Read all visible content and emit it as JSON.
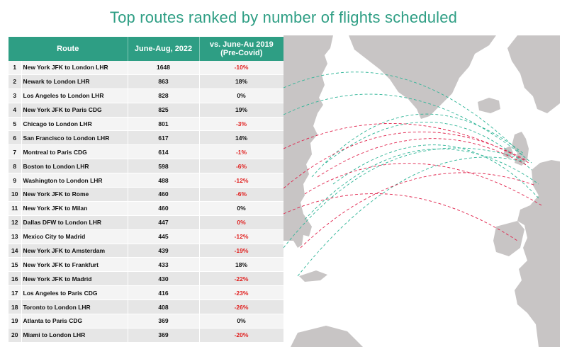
{
  "title": "Top routes ranked by number of flights scheduled",
  "table": {
    "headers": [
      "Route",
      "June-Aug, 2022",
      "vs. June-Au 2019 (Pre-Covid)"
    ],
    "header_line2": "(Pre-Covid)",
    "header_line1": "vs. June-Au 2019"
  },
  "chart_data": {
    "type": "table",
    "title": "Top routes ranked by number of flights scheduled",
    "columns": [
      "Route",
      "June-Aug, 2022",
      "vs. June-Au 2019 (Pre-Covid)"
    ],
    "rows": [
      {
        "rank": "1",
        "route": "New York JFK to London LHR",
        "flights": "1648",
        "change": "-10%"
      },
      {
        "rank": "2",
        "route": "Newark to London LHR",
        "flights": "863",
        "change": "18%"
      },
      {
        "rank": "3",
        "route": "Los Angeles to London LHR",
        "flights": "828",
        "change": "0%"
      },
      {
        "rank": "4",
        "route": "New York JFK to Paris CDG",
        "flights": "825",
        "change": "19%"
      },
      {
        "rank": "5",
        "route": "Chicago to London LHR",
        "flights": "801",
        "change": "-3%"
      },
      {
        "rank": "6",
        "route": "San Francisco to London LHR",
        "flights": "617",
        "change": "14%"
      },
      {
        "rank": "7",
        "route": "Montreal to Paris CDG",
        "flights": "614",
        "change": "-1%"
      },
      {
        "rank": "8",
        "route": "Boston to London LHR",
        "flights": "598",
        "change": "-6%"
      },
      {
        "rank": "9",
        "route": "Washington to London LHR",
        "flights": "488",
        "change": "-12%"
      },
      {
        "rank": "10",
        "route": "New York JFK to Rome",
        "flights": "460",
        "change": "-6%"
      },
      {
        "rank": "11",
        "route": "New York JFK to Milan",
        "flights": "460",
        "change": "0%"
      },
      {
        "rank": "12",
        "route": "Dallas DFW to London LHR",
        "flights": "447",
        "change": "0%"
      },
      {
        "rank": "13",
        "route": "Mexico City to Madrid",
        "flights": "445",
        "change": "-12%"
      },
      {
        "rank": "14",
        "route": "New York JFK to Amsterdam",
        "flights": "439",
        "change": "-19%"
      },
      {
        "rank": "15",
        "route": "New York JFK to Frankfurt",
        "flights": "433",
        "change": "18%"
      },
      {
        "rank": "16",
        "route": "New York JFK to Madrid",
        "flights": "430",
        "change": "-22%"
      },
      {
        "rank": "17",
        "route": "Los Angeles to Paris CDG",
        "flights": "416",
        "change": "-23%"
      },
      {
        "rank": "18",
        "route": "Toronto to London LHR",
        "flights": "408",
        "change": "-26%"
      },
      {
        "rank": "19",
        "route": "Atlanta to Paris CDG",
        "flights": "369",
        "change": "0%"
      },
      {
        "rank": "20",
        "route": "Miami to London LHR",
        "flights": "369",
        "change": "-20%"
      }
    ],
    "red_rows": [
      1,
      5,
      7,
      8,
      9,
      10,
      12,
      13,
      14,
      16,
      17,
      18,
      20
    ]
  },
  "colors": {
    "accent": "#2e9e84",
    "negative": "#e0201f",
    "land": "#c8c5c5",
    "route_green": "#2fb597",
    "route_red": "#e0204a"
  }
}
